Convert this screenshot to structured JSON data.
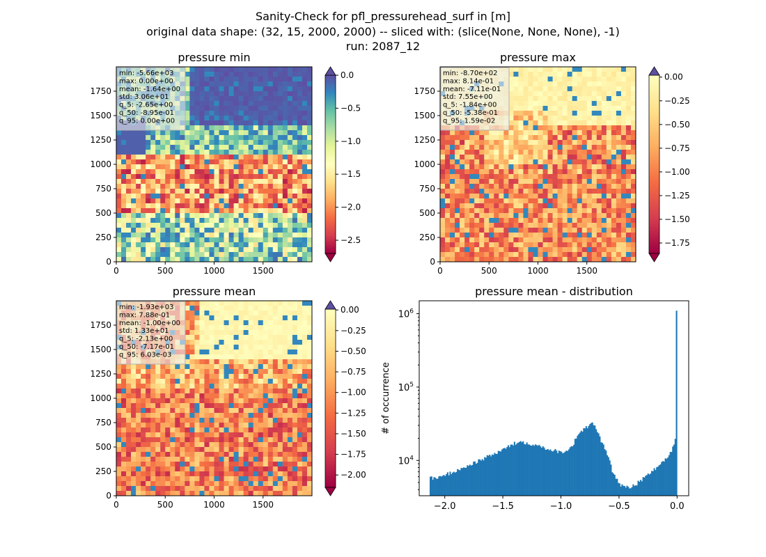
{
  "figure": {
    "title_lines": [
      "Sanity-Check for pfl_pressurehead_surf in [m]",
      "original data shape: (32, 15, 2000, 2000) -- sliced with: (slice(None, None, None), -1)",
      "run: 2087_12"
    ]
  },
  "chart_data": [
    {
      "type": "heatmap",
      "title": "pressure min",
      "xlim": [
        0,
        2000
      ],
      "ylim": [
        0,
        2000
      ],
      "xticks": [
        "0",
        "500",
        "1000",
        "1500"
      ],
      "yticks": [
        "0",
        "250",
        "500",
        "750",
        "1000",
        "1250",
        "1500",
        "1750"
      ],
      "colormap": "Spectral",
      "colorbar": {
        "min": -2.7,
        "max": 0.0,
        "ticks": [
          "0.0",
          "−0.5",
          "−1.0",
          "−1.5",
          "−2.0",
          "−2.5"
        ],
        "extend": "both"
      },
      "stats": [
        "min: -5.66e+03",
        "max: 0.00e+00",
        "mean: -1.64e+00",
        "std: 3.06e+01",
        "q_5: -2.65e+00",
        "q_50: -8.95e-01",
        "q_95: 0.00e+00"
      ]
    },
    {
      "type": "heatmap",
      "title": "pressure max",
      "xlim": [
        0,
        2000
      ],
      "ylim": [
        0,
        2000
      ],
      "xticks": [
        "0",
        "500",
        "1000",
        "1500"
      ],
      "yticks": [
        "0",
        "250",
        "500",
        "750",
        "1000",
        "1250",
        "1500",
        "1750"
      ],
      "colormap": "Spectral",
      "colorbar": {
        "min": -1.86,
        "max": 0.02,
        "ticks": [
          "0.00",
          "−0.25",
          "−0.50",
          "−0.75",
          "−1.00",
          "−1.25",
          "−1.50",
          "−1.75"
        ],
        "extend": "both"
      },
      "stats": [
        "min: -8.70e+02",
        "max: 8.14e-01",
        "mean: -7.11e-01",
        "std: 7.55e+00",
        "q_5: -1.84e+00",
        "q_50: -5.38e-01",
        "q_95: 1.59e-02"
      ]
    },
    {
      "type": "heatmap",
      "title": "pressure mean",
      "xlim": [
        0,
        2000
      ],
      "ylim": [
        0,
        2000
      ],
      "xticks": [
        "0",
        "500",
        "1000",
        "1500"
      ],
      "yticks": [
        "0",
        "250",
        "500",
        "750",
        "1000",
        "1250",
        "1500",
        "1750"
      ],
      "colormap": "Spectral",
      "colorbar": {
        "min": -2.15,
        "max": 0.01,
        "ticks": [
          "0.00",
          "−0.25",
          "−0.50",
          "−0.75",
          "−1.00",
          "−1.25",
          "−1.50",
          "−1.75",
          "−2.00"
        ],
        "extend": "both"
      },
      "stats": [
        "min: -1.93e+03",
        "max: 7.88e-01",
        "mean: -1.00e+00",
        "std: 1.33e+01",
        "q_5: -2.13e+00",
        "q_50: -7.17e-01",
        "q_95: 6.03e-03"
      ]
    },
    {
      "type": "bar",
      "title": "pressure mean - distribution",
      "ylabel": "# of occurrence",
      "xlim": [
        -2.22,
        0.1
      ],
      "yscale": "log",
      "ylim": [
        3300,
        1500000
      ],
      "xticks": [
        -2.0,
        -1.5,
        -1.0,
        -0.5,
        0.0
      ],
      "xtick_labels": [
        "−2.0",
        "−1.5",
        "−1.0",
        "−0.5",
        "0.0"
      ],
      "yticks": [
        10000,
        100000,
        1000000
      ],
      "ytick_base": "10",
      "ytick_exponents": [
        "4",
        "5",
        "6"
      ],
      "color": "#1f77b4",
      "bin_start": -2.13,
      "bin_end": 0.0,
      "profile": [
        [
          -2.13,
          6500
        ],
        [
          -2.1,
          5600
        ],
        [
          -2.0,
          6300
        ],
        [
          -1.9,
          7200
        ],
        [
          -1.8,
          8500
        ],
        [
          -1.7,
          10000
        ],
        [
          -1.6,
          11800
        ],
        [
          -1.5,
          14000
        ],
        [
          -1.4,
          17000
        ],
        [
          -1.35,
          18000
        ],
        [
          -1.3,
          17500
        ],
        [
          -1.2,
          16000
        ],
        [
          -1.1,
          14200
        ],
        [
          -1.0,
          13000
        ],
        [
          -0.95,
          13500
        ],
        [
          -0.9,
          16000
        ],
        [
          -0.87,
          20000
        ],
        [
          -0.84,
          24000
        ],
        [
          -0.8,
          27000
        ],
        [
          -0.75,
          30000
        ],
        [
          -0.72,
          32000
        ],
        [
          -0.7,
          28000
        ],
        [
          -0.67,
          21000
        ],
        [
          -0.6,
          12000
        ],
        [
          -0.55,
          6500
        ],
        [
          -0.5,
          4800
        ],
        [
          -0.45,
          4400
        ],
        [
          -0.4,
          4400
        ],
        [
          -0.35,
          4800
        ],
        [
          -0.3,
          5500
        ],
        [
          -0.25,
          6400
        ],
        [
          -0.2,
          7500
        ],
        [
          -0.15,
          8800
        ],
        [
          -0.1,
          10500
        ],
        [
          -0.05,
          13000
        ],
        [
          -0.03,
          16000
        ],
        [
          -0.015,
          20000
        ],
        [
          -0.005,
          30000
        ],
        [
          0.0,
          1100000
        ]
      ]
    }
  ]
}
